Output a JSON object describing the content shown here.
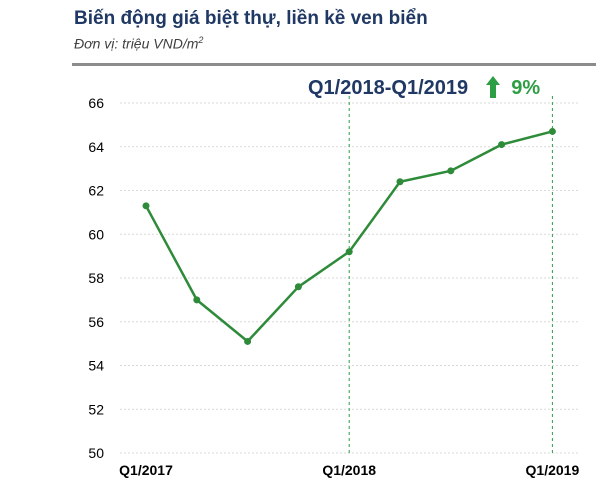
{
  "header": {
    "title": "Biến động giá biệt thự, liền kề ven biển",
    "subtitle": "Đơn vị: triệu VND/m",
    "subtitle_sup": "2"
  },
  "annotation": {
    "range": "Q1/2018-Q1/2019",
    "change": "9%",
    "arrow_color": "#2e9e45",
    "text_color": "#1f3864"
  },
  "chart_data": {
    "type": "line",
    "title": "Biến động giá biệt thự, liền kề ven biển",
    "ylabel": "",
    "xlabel": "",
    "ylim": [
      50,
      66
    ],
    "yticks": [
      "50",
      "52",
      "54",
      "56",
      "58",
      "60",
      "62",
      "64",
      "66"
    ],
    "xtick_labels": [
      "Q1/2017",
      "Q1/2018",
      "Q1/2019"
    ],
    "grid": true,
    "color": "#2e8b3a",
    "series": [
      {
        "values": [
          61.3,
          57.0,
          55.1,
          57.6,
          59.2,
          62.4,
          62.9,
          64.1,
          64.7
        ]
      }
    ],
    "xtick_positions": [
      0,
      4,
      8
    ],
    "markers": [
      4,
      8
    ]
  }
}
